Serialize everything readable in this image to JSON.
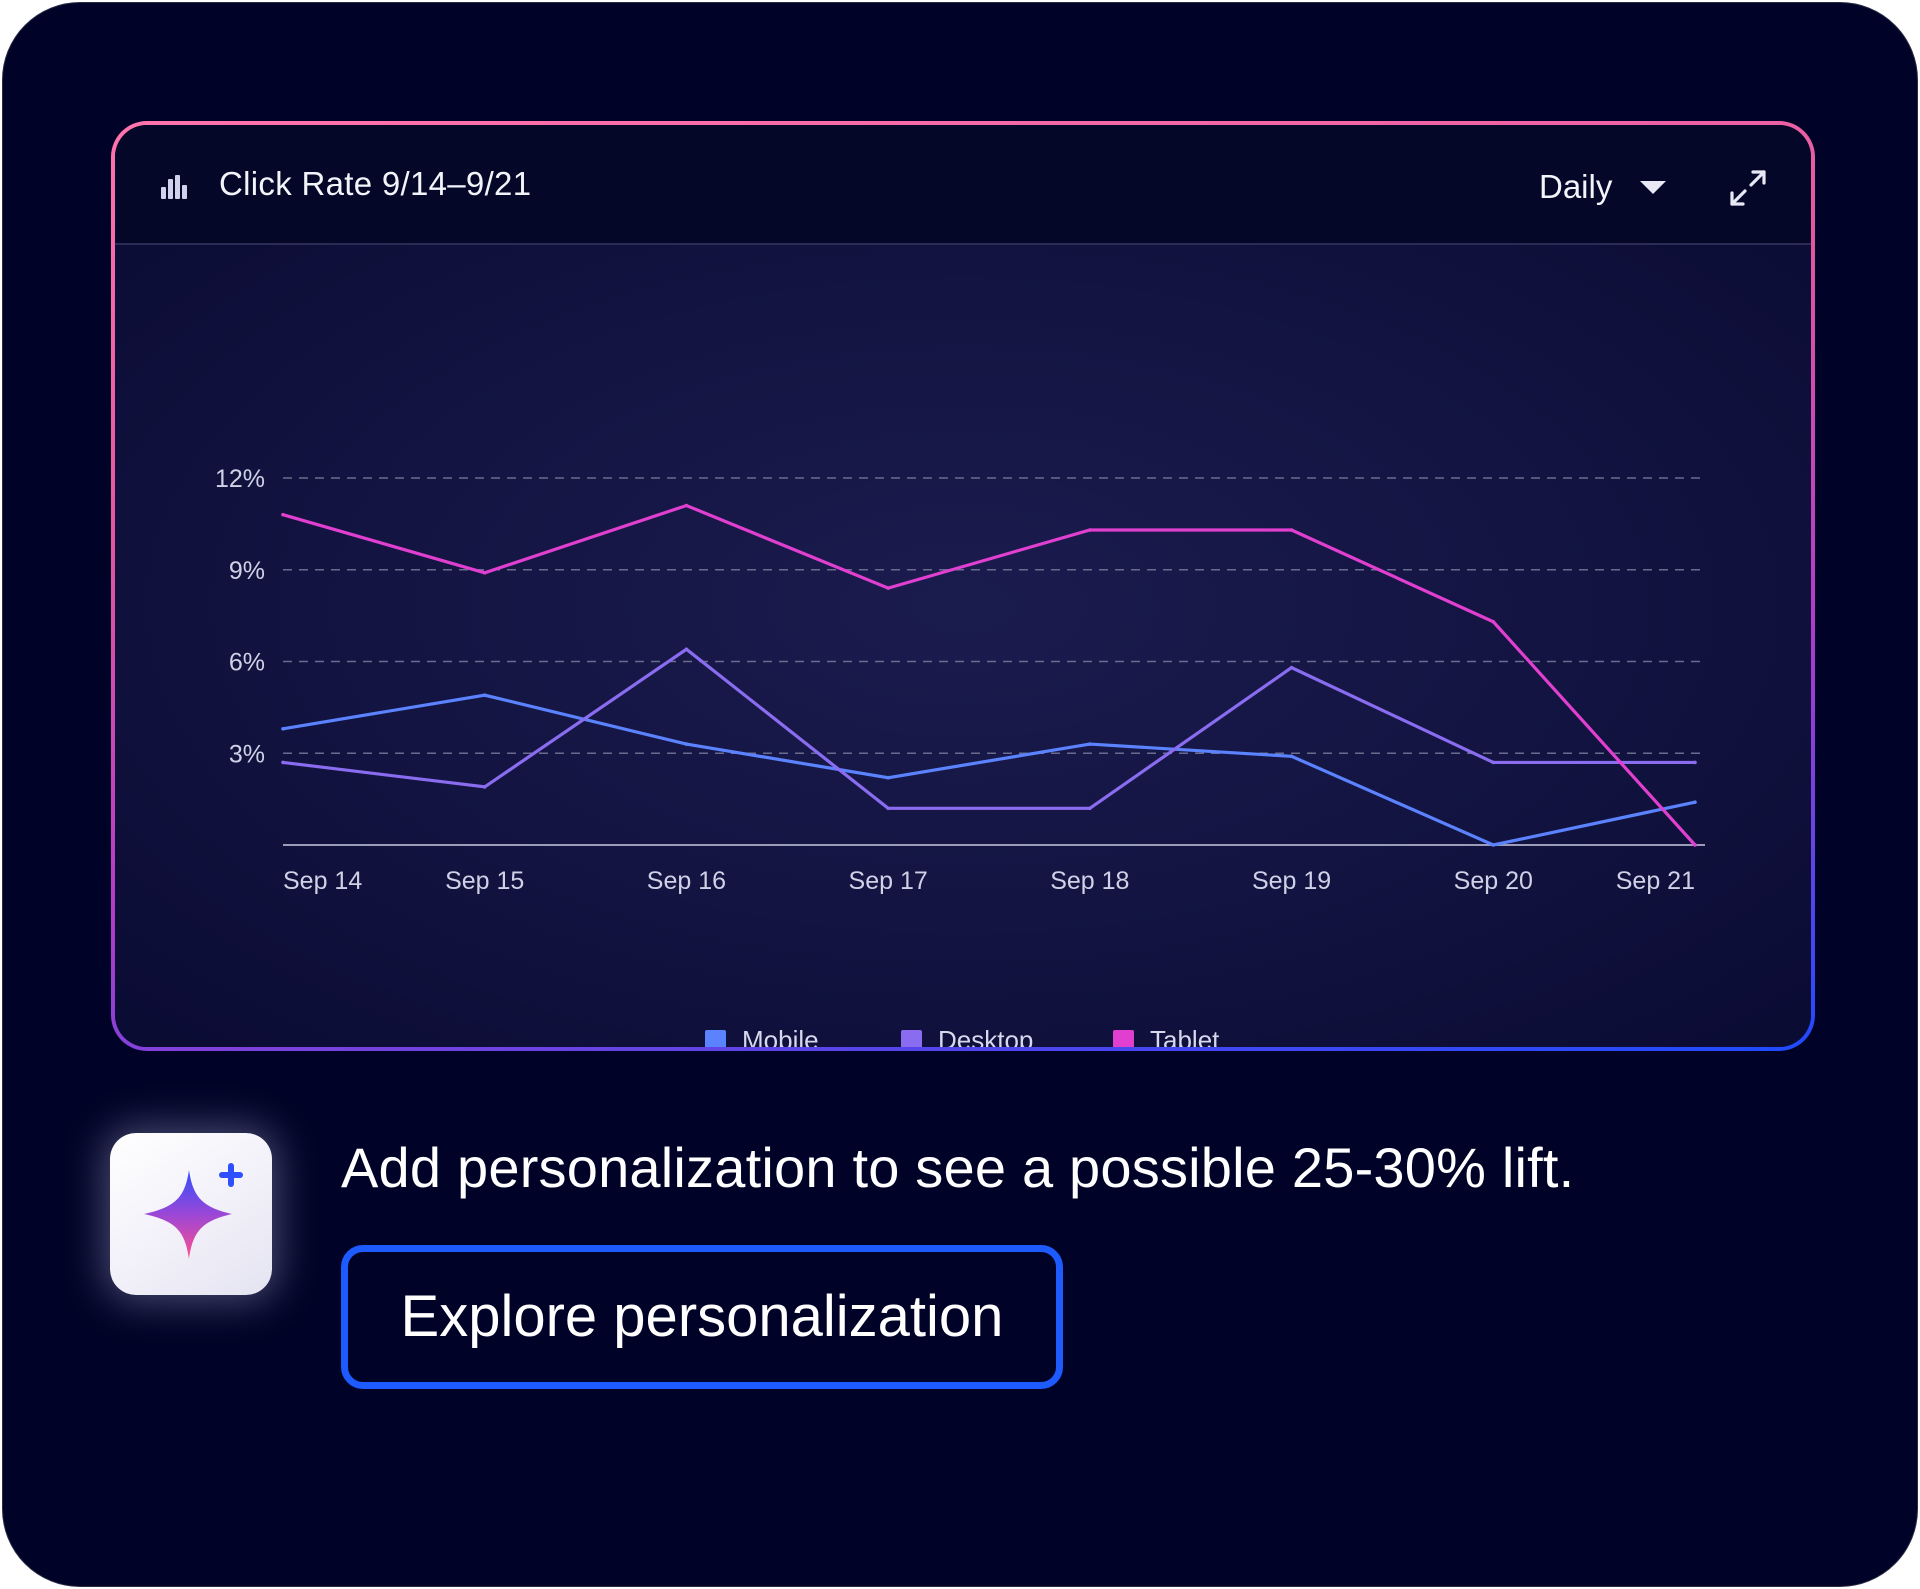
{
  "panel": {
    "title": "Click Rate 9/14–9/21",
    "period_label": "Daily",
    "icons": [
      "bar-chart-icon",
      "chevron-down-icon",
      "expand-icon"
    ]
  },
  "chart_data": {
    "type": "line",
    "x": [
      "Sep 14",
      "Sep 15",
      "Sep 16",
      "Sep 17",
      "Sep 18",
      "Sep 19",
      "Sep 20",
      "Sep 21"
    ],
    "y_ticks": [
      "3%",
      "6%",
      "9%",
      "12%"
    ],
    "ylim": [
      0,
      12
    ],
    "grid": true,
    "legend_position": "bottom",
    "series": [
      {
        "name": "Mobile",
        "color": "#5b82ff",
        "values": [
          3.8,
          4.9,
          3.3,
          2.2,
          3.3,
          2.9,
          0.0,
          1.4
        ]
      },
      {
        "name": "Desktop",
        "color": "#8a6cf0",
        "values": [
          2.7,
          1.9,
          6.4,
          1.2,
          1.2,
          5.8,
          2.7,
          2.7
        ]
      },
      {
        "name": "Tablet",
        "color": "#e03fcf",
        "values": [
          10.8,
          8.9,
          11.1,
          8.4,
          10.3,
          10.3,
          7.3,
          0.0
        ]
      }
    ]
  },
  "promo": {
    "message": "Add personalization to see a possible 25-30% lift.",
    "button_label": "Explore personalization",
    "icon": "sparkle-icon"
  }
}
